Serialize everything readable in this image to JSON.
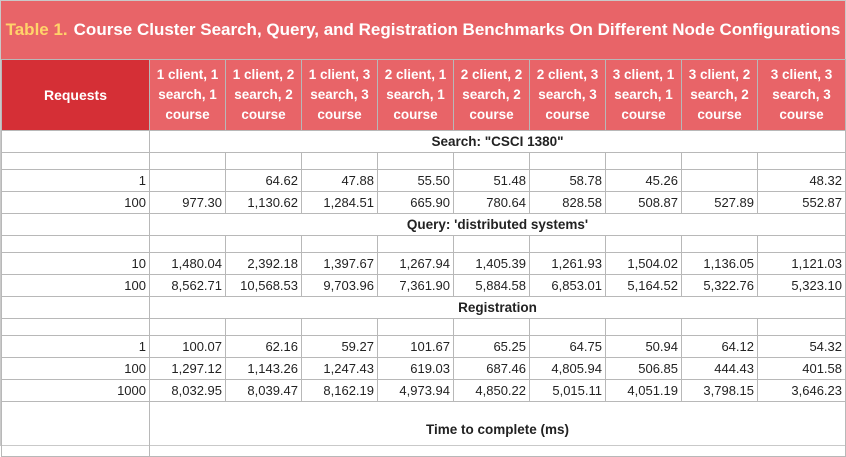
{
  "title": {
    "label": "Table 1.",
    "text": "Course Cluster Search, Query, and Registration Benchmarks On Different Node Configurations"
  },
  "header": {
    "requests_label": "Requests",
    "columns": [
      "1 client, 1 search, 1 course",
      "1 client, 2 search, 2 course",
      "1 client, 3 search, 3 course",
      "2 client, 1 search, 1 course",
      "2 client, 2 search, 2 course",
      "2 client, 3 search, 3 course",
      "3 client, 1 search, 1 course",
      "3 client, 2 search, 2 course",
      "3 client, 3 search, 3 course"
    ]
  },
  "sections": [
    {
      "title": "Search: \"CSCI 1380\"",
      "rows": [
        {
          "requests": "1",
          "values": [
            "",
            "64.62",
            "47.88",
            "55.50",
            "51.48",
            "58.78",
            "45.26",
            "",
            "48.32"
          ]
        },
        {
          "requests": "100",
          "values": [
            "977.30",
            "1,130.62",
            "1,284.51",
            "665.90",
            "780.64",
            "828.58",
            "508.87",
            "527.89",
            "552.87"
          ]
        }
      ]
    },
    {
      "title": "Query: 'distributed systems'",
      "rows": [
        {
          "requests": "10",
          "values": [
            "1,480.04",
            "2,392.18",
            "1,397.67",
            "1,267.94",
            "1,405.39",
            "1,261.93",
            "1,504.02",
            "1,136.05",
            "1,121.03"
          ]
        },
        {
          "requests": "100",
          "values": [
            "8,562.71",
            "10,568.53",
            "9,703.96",
            "7,361.90",
            "5,884.58",
            "6,853.01",
            "5,164.52",
            "5,322.76",
            "5,323.10"
          ]
        }
      ]
    },
    {
      "title": "Registration",
      "rows": [
        {
          "requests": "1",
          "values": [
            "100.07",
            "62.16",
            "59.27",
            "101.67",
            "65.25",
            "64.75",
            "50.94",
            "64.12",
            "54.32"
          ]
        },
        {
          "requests": "100",
          "values": [
            "1,297.12",
            "1,143.26",
            "1,247.43",
            "619.03",
            "687.46",
            "4,805.94",
            "506.85",
            "444.43",
            "401.58"
          ]
        },
        {
          "requests": "1000",
          "values": [
            "8,032.95",
            "8,039.47",
            "8,162.19",
            "4,973.94",
            "4,850.22",
            "5,015.11",
            "4,051.19",
            "3,798.15",
            "3,646.23"
          ]
        }
      ]
    }
  ],
  "footer": "Time to complete (ms)"
}
